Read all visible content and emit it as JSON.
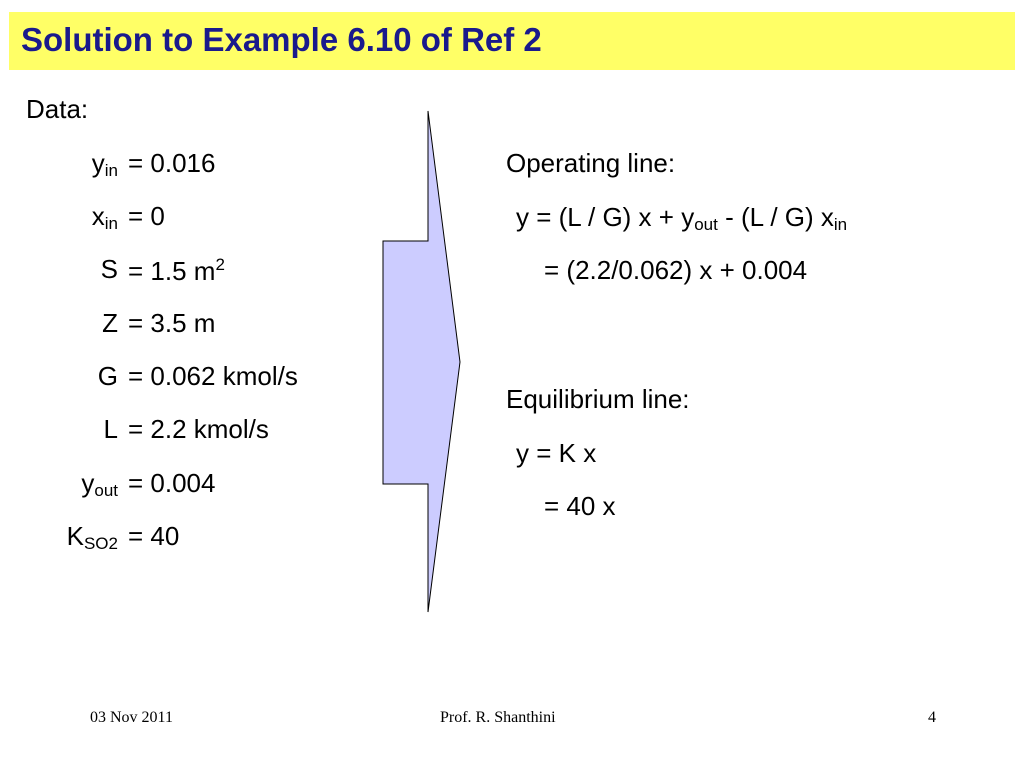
{
  "title": "Solution to Example 6.10 of Ref 2",
  "data_heading": "Data:",
  "data": [
    {
      "sym": "y",
      "sub": "in",
      "value": "= 0.016"
    },
    {
      "sym": "x",
      "sub": "in",
      "value": "= 0"
    },
    {
      "sym": "S",
      "value": "= 1.5 m",
      "sup": "2"
    },
    {
      "sym": "Z",
      "value": "= 3.5 m"
    },
    {
      "sym": "G",
      "value": "= 0.062 kmol/s"
    },
    {
      "sym": "L",
      "value": "= 2.2 kmol/s"
    },
    {
      "sym": "y",
      "sub": "out",
      "value": "= 0.004"
    },
    {
      "sym": "K",
      "sub": "SO2",
      "value": "= 40"
    }
  ],
  "operating": {
    "heading": "Operating line:",
    "eq1_a": "y = (L / G) x + y",
    "eq1_sub1": "out",
    "eq1_b": " - (L / G) x",
    "eq1_sub2": "in",
    "eq2": "= (2.2/0.062) x + 0.004"
  },
  "equilibrium": {
    "heading": "Equilibrium line:",
    "eq1": "y = K x",
    "eq2": "= 40 x"
  },
  "footer": {
    "date": "03 Nov 2011",
    "author": "Prof. R. Shanthini",
    "page": "4"
  },
  "colors": {
    "title_bg": "#ffff66",
    "title_text": "#1a1a8c",
    "arrow_fill": "#ccccff"
  }
}
